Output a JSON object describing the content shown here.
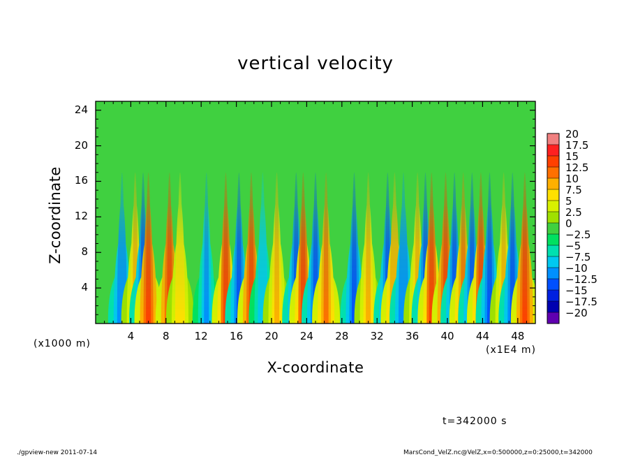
{
  "chart_data": {
    "type": "heatmap",
    "title": "vertical velocity",
    "xlabel": "X-coordinate",
    "ylabel": "Z-coordinate",
    "x_unit_label": "(x1E4 m)",
    "y_unit_label": "(x1000 m)",
    "xlim": [
      0,
      50
    ],
    "ylim": [
      0,
      25
    ],
    "x_ticks": [
      4,
      8,
      12,
      16,
      20,
      24,
      28,
      32,
      36,
      40,
      44,
      48
    ],
    "y_ticks": [
      4,
      8,
      12,
      16,
      20,
      24
    ],
    "colorbar": {
      "labels": [
        "20",
        "17.5",
        "15",
        "12.5",
        "10",
        "7.5",
        "5",
        "2.5",
        "0",
        "−2.5",
        "−5",
        "−7.5",
        "−10",
        "−12.5",
        "−15",
        "−17.5",
        "−20"
      ],
      "levels": [
        20,
        17.5,
        15,
        12.5,
        10,
        7.5,
        5,
        2.5,
        0,
        -2.5,
        -5,
        -7.5,
        -10,
        -12.5,
        -15,
        -17.5,
        -20
      ],
      "colors": [
        "#f08080",
        "#ff2020",
        "#ff4000",
        "#ff7000",
        "#ffb000",
        "#ffe000",
        "#d8f000",
        "#a0e000",
        "#40d040",
        "#00e060",
        "#00e0b0",
        "#00c8f0",
        "#0090ff",
        "#0050ff",
        "#0020e0",
        "#0000b0",
        "#6000b0"
      ]
    },
    "background_value": 0,
    "features": [
      {
        "x": 3.0,
        "amp": -11
      },
      {
        "x": 4.5,
        "amp": 10
      },
      {
        "x": 5.4,
        "amp": -12
      },
      {
        "x": 6.0,
        "amp": 15
      },
      {
        "x": 8.4,
        "amp": 16
      },
      {
        "x": 9.6,
        "amp": 8
      },
      {
        "x": 12.6,
        "amp": -10
      },
      {
        "x": 14.8,
        "amp": 14
      },
      {
        "x": 16.3,
        "amp": -13
      },
      {
        "x": 17.7,
        "amp": 16
      },
      {
        "x": 19.0,
        "amp": -8
      },
      {
        "x": 20.6,
        "amp": 9
      },
      {
        "x": 22.8,
        "amp": -12
      },
      {
        "x": 23.6,
        "amp": 14
      },
      {
        "x": 25.0,
        "amp": -12
      },
      {
        "x": 26.2,
        "amp": 13
      },
      {
        "x": 29.4,
        "amp": -12
      },
      {
        "x": 31.0,
        "amp": 9
      },
      {
        "x": 33.2,
        "amp": -12
      },
      {
        "x": 34.0,
        "amp": 11
      },
      {
        "x": 35.0,
        "amp": -11
      },
      {
        "x": 36.6,
        "amp": 10
      },
      {
        "x": 37.5,
        "amp": -12
      },
      {
        "x": 38.2,
        "amp": 14
      },
      {
        "x": 39.8,
        "amp": 16
      },
      {
        "x": 40.8,
        "amp": -13
      },
      {
        "x": 41.8,
        "amp": 12
      },
      {
        "x": 42.8,
        "amp": -12
      },
      {
        "x": 43.8,
        "amp": 14
      },
      {
        "x": 44.8,
        "amp": -12
      },
      {
        "x": 46.4,
        "amp": 10
      },
      {
        "x": 47.4,
        "amp": -12
      },
      {
        "x": 48.8,
        "amp": 15
      }
    ]
  },
  "annotations": {
    "time": "t=342000 s",
    "footer_left": "./gpview-new   2011-07-14",
    "footer_right": "MarsCond_VelZ.nc@VelZ,x=0:500000,z=0:25000,t=342000"
  }
}
